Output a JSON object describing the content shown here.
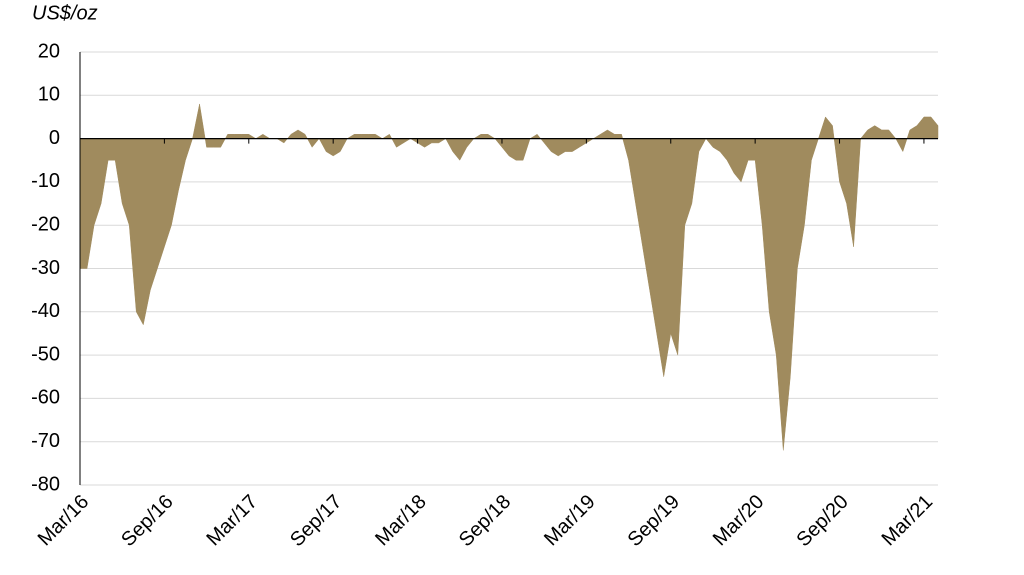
{
  "chart_data": {
    "type": "area",
    "y_label": "US$/oz",
    "color": "#a08b5e",
    "grid": true,
    "xlim": [
      0,
      61
    ],
    "ylim": [
      -80,
      20
    ],
    "yticks": [
      -80,
      -70,
      -60,
      -50,
      -40,
      -30,
      -20,
      -10,
      0,
      10,
      20
    ],
    "xticks": [
      {
        "value": 0,
        "label": "Mar/16"
      },
      {
        "value": 6,
        "label": "Sep/16"
      },
      {
        "value": 12,
        "label": "Mar/17"
      },
      {
        "value": 18,
        "label": "Sep/17"
      },
      {
        "value": 24,
        "label": "Mar/18"
      },
      {
        "value": 30,
        "label": "Sep/18"
      },
      {
        "value": 36,
        "label": "Mar/19"
      },
      {
        "value": 42,
        "label": "Sep/19"
      },
      {
        "value": 48,
        "label": "Mar/20"
      },
      {
        "value": 54,
        "label": "Sep/20"
      },
      {
        "value": 60,
        "label": "Mar/21"
      }
    ],
    "x": [
      0,
      0.5,
      1,
      1.5,
      2,
      2.5,
      3,
      3.5,
      4,
      4.5,
      5,
      5.5,
      6,
      6.5,
      7,
      7.5,
      8,
      8.5,
      9,
      9.5,
      10,
      10.5,
      11,
      11.5,
      12,
      12.5,
      13,
      13.5,
      14,
      14.5,
      15,
      15.5,
      16,
      16.5,
      17,
      17.5,
      18,
      18.5,
      19,
      19.5,
      20,
      20.5,
      21,
      21.5,
      22,
      22.5,
      23,
      23.5,
      24,
      24.5,
      25,
      25.5,
      26,
      26.5,
      27,
      27.5,
      28,
      28.5,
      29,
      29.5,
      30,
      30.5,
      31,
      31.5,
      32,
      32.5,
      33,
      33.5,
      34,
      34.5,
      35,
      35.5,
      36,
      36.5,
      37,
      37.5,
      38,
      38.5,
      39,
      39.5,
      40,
      40.5,
      41,
      41.5,
      42,
      42.5,
      43,
      43.5,
      44,
      44.5,
      45,
      45.5,
      46,
      46.5,
      47,
      47.5,
      48,
      48.5,
      49,
      49.5,
      50,
      50.5,
      51,
      51.5,
      52,
      52.5,
      53,
      53.5,
      54,
      54.5,
      55,
      55.5,
      56,
      56.5,
      57,
      57.5,
      58,
      58.5,
      59,
      59.5,
      60,
      60.5,
      61
    ],
    "values": [
      -30,
      -30,
      -20,
      -15,
      -5,
      -5,
      -15,
      -20,
      -40,
      -43,
      -35,
      -30,
      -25,
      -20,
      -12,
      -5,
      0,
      8,
      -2,
      -2,
      -2,
      1,
      1,
      1,
      1,
      0,
      1,
      0,
      0,
      -1,
      1,
      2,
      1,
      -2,
      0,
      -3,
      -4,
      -3,
      0,
      1,
      1,
      1,
      1,
      0,
      1,
      -2,
      -1,
      0,
      -1,
      -2,
      -1,
      -1,
      0,
      -3,
      -5,
      -2,
      0,
      1,
      1,
      0,
      -2,
      -4,
      -5,
      -5,
      0,
      1,
      -1,
      -3,
      -4,
      -3,
      -3,
      -2,
      -1,
      0,
      1,
      2,
      1,
      1,
      -5,
      -15,
      -25,
      -35,
      -45,
      -55,
      -45,
      -50,
      -20,
      -15,
      -3,
      0,
      -2,
      -3,
      -5,
      -8,
      -10,
      -5,
      -5,
      -20,
      -40,
      -50,
      -72,
      -55,
      -30,
      -20,
      -5,
      0,
      5,
      3,
      -10,
      -15,
      -25,
      0,
      2,
      3,
      2,
      2,
      0,
      -3,
      2,
      3,
      5,
      5,
      3
    ]
  }
}
